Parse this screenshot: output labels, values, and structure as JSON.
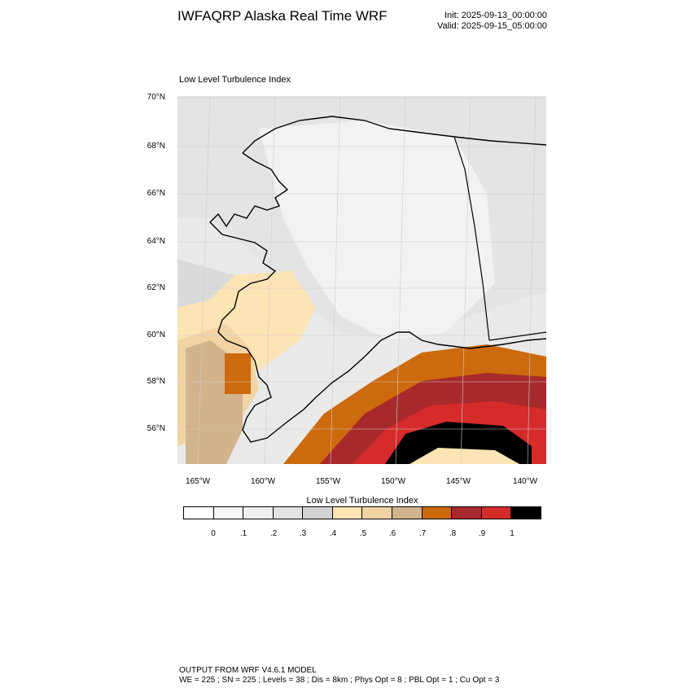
{
  "header": {
    "title": "IWFAQRP Alaska Real Time WRF",
    "init": "Init: 2025-09-13_00:00:00",
    "valid": "Valid: 2025-09-15_05:00:00"
  },
  "plot": {
    "title": "Low Level Turbulence Index",
    "lat_labels": [
      "70°N",
      "68°N",
      "66°N",
      "64°N",
      "62°N",
      "60°N",
      "58°N",
      "56°N"
    ],
    "lon_labels": [
      "165°W",
      "160°W",
      "155°W",
      "150°W",
      "145°W",
      "140°W"
    ]
  },
  "colorbar": {
    "title": "Low Level Turbulence Index",
    "colors": [
      "#ffffff",
      "#f7f7f7",
      "#efefef",
      "#e2e2e2",
      "#d4d4d4",
      "#fde4b4",
      "#f2d4a4",
      "#d1b48c",
      "#cd6a0d",
      "#a8292c",
      "#d62b2b",
      "#000000"
    ],
    "labels": [
      "0",
      ".1",
      ".2",
      ".3",
      ".4",
      ".5",
      ".6",
      ".7",
      ".8",
      ".9",
      "1"
    ]
  },
  "footer": {
    "line1": "OUTPUT FROM WRF V4.6.1 MODEL",
    "line2": "WE = 225 ; SN = 225 ; Levels = 38 ; Dis = 8km ; Phys Opt = 8 ; PBL Opt = 1 ; Cu Opt = 3"
  }
}
